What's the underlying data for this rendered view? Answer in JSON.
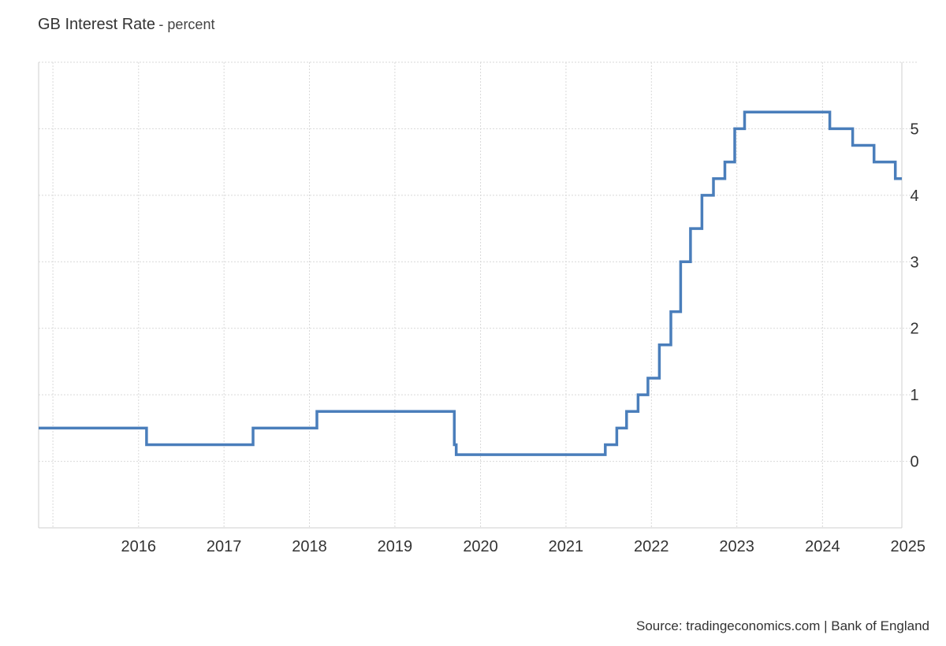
{
  "header": {
    "title": "GB Interest Rate",
    "subtitle": "- percent"
  },
  "footer": {
    "source": "Source: tradingeconomics.com | Bank of England"
  },
  "chart_data": {
    "type": "line",
    "step": true,
    "title": "GB Interest Rate",
    "subtitle": "percent",
    "x_ticks": [
      "2016",
      "2017",
      "2018",
      "2019",
      "2020",
      "2021",
      "2022",
      "2023",
      "2024",
      "2025"
    ],
    "y_ticks": [
      "0",
      "1",
      "2",
      "3",
      "4",
      "5"
    ],
    "xlim": [
      "2015-05-01",
      "2025-06-05"
    ],
    "ylim": [
      -1,
      6
    ],
    "y_axis_side": "right",
    "grid": true,
    "line_color": "#4a7ebb",
    "series": [
      {
        "x": [
          "2015-05-01",
          "2016-08-04",
          "2017-11-02",
          "2018-08-02",
          "2020-03-11",
          "2020-03-19",
          "2021-12-16",
          "2022-02-03",
          "2022-03-17",
          "2022-05-05",
          "2022-06-16",
          "2022-08-04",
          "2022-09-22",
          "2022-11-03",
          "2022-12-15",
          "2023-02-02",
          "2023-03-23",
          "2023-05-11",
          "2023-06-22",
          "2023-08-03",
          "2024-08-01",
          "2024-11-07",
          "2025-02-06",
          "2025-05-08",
          "2025-06-05"
        ],
        "values": [
          0.5,
          0.25,
          0.5,
          0.75,
          0.25,
          0.1,
          0.25,
          0.5,
          0.75,
          1.0,
          1.25,
          1.75,
          2.25,
          3.0,
          3.5,
          4.0,
          4.25,
          4.5,
          5.0,
          5.25,
          5.0,
          4.75,
          4.5,
          4.25,
          4.25
        ]
      }
    ]
  }
}
